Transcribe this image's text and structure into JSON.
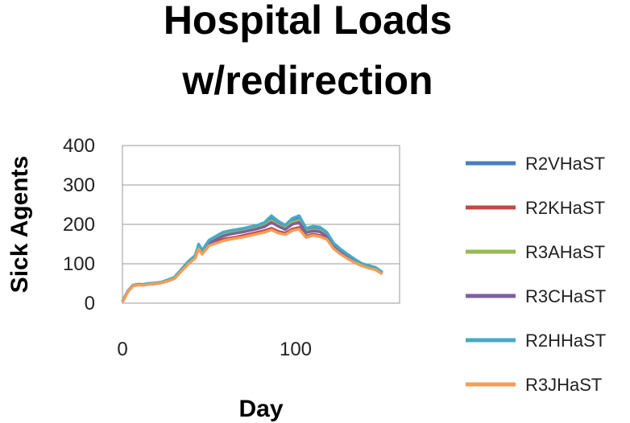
{
  "chart_data": {
    "type": "line",
    "title": [
      "Hospital Loads",
      "w/redirection"
    ],
    "xlabel": "Day",
    "ylabel": "Sick Agents",
    "xlim": [
      0,
      160
    ],
    "ylim": [
      0,
      400
    ],
    "x_ticks": [
      0,
      100
    ],
    "y_ticks": [
      0,
      100,
      200,
      300,
      400
    ],
    "grid": "horizontal",
    "legend_position": "right",
    "series": [
      {
        "name": "R2VHaST",
        "color": "#4a7ebb",
        "x": [
          0,
          3,
          6,
          9,
          12,
          15,
          18,
          22,
          26,
          30,
          34,
          38,
          42,
          44,
          46,
          50,
          54,
          58,
          62,
          66,
          70,
          74,
          78,
          82,
          86,
          90,
          94,
          98,
          102,
          106,
          110,
          114,
          118,
          122,
          126,
          130,
          134,
          138,
          142,
          146,
          150
        ],
        "y": [
          5,
          30,
          45,
          48,
          47,
          49,
          50,
          52,
          58,
          65,
          85,
          105,
          120,
          148,
          132,
          158,
          168,
          178,
          182,
          185,
          188,
          192,
          196,
          202,
          218,
          205,
          195,
          212,
          218,
          188,
          192,
          190,
          178,
          150,
          135,
          122,
          110,
          100,
          95,
          90,
          78
        ]
      },
      {
        "name": "R2KHaST",
        "color": "#be4b48",
        "x": [
          0,
          3,
          6,
          9,
          12,
          15,
          18,
          22,
          26,
          30,
          34,
          38,
          42,
          44,
          46,
          50,
          54,
          58,
          62,
          66,
          70,
          74,
          78,
          82,
          86,
          90,
          94,
          98,
          102,
          106,
          110,
          114,
          118,
          122,
          126,
          130,
          134,
          138,
          142,
          146,
          150
        ],
        "y": [
          3,
          28,
          44,
          47,
          46,
          48,
          49,
          51,
          56,
          63,
          82,
          100,
          115,
          140,
          126,
          148,
          155,
          162,
          165,
          168,
          172,
          176,
          180,
          184,
          190,
          182,
          178,
          188,
          192,
          170,
          175,
          172,
          165,
          140,
          126,
          115,
          105,
          96,
          90,
          86,
          75
        ]
      },
      {
        "name": "R3AHaST",
        "color": "#98b954",
        "x": [
          0,
          3,
          6,
          9,
          12,
          15,
          18,
          22,
          26,
          30,
          34,
          38,
          42,
          44,
          46,
          50,
          54,
          58,
          62,
          66,
          70,
          74,
          78,
          82,
          86,
          90,
          94,
          98,
          102,
          106,
          110,
          114,
          118,
          122,
          126,
          130,
          134,
          138,
          142,
          146,
          150
        ],
        "y": [
          4,
          29,
          45,
          47,
          47,
          48,
          50,
          52,
          57,
          64,
          84,
          103,
          118,
          145,
          130,
          154,
          164,
          174,
          178,
          181,
          184,
          188,
          192,
          197,
          210,
          198,
          190,
          205,
          210,
          182,
          186,
          184,
          172,
          146,
          131,
          119,
          108,
          98,
          93,
          88,
          77
        ]
      },
      {
        "name": "R3CHaST",
        "color": "#7d60a0",
        "x": [
          0,
          3,
          6,
          9,
          12,
          15,
          18,
          22,
          26,
          30,
          34,
          38,
          42,
          44,
          46,
          50,
          54,
          58,
          62,
          66,
          70,
          74,
          78,
          82,
          86,
          90,
          94,
          98,
          102,
          106,
          110,
          114,
          118,
          122,
          126,
          130,
          134,
          138,
          142,
          146,
          150
        ],
        "y": [
          4,
          29,
          44,
          48,
          46,
          49,
          49,
          52,
          57,
          64,
          83,
          102,
          117,
          144,
          129,
          152,
          161,
          170,
          175,
          178,
          181,
          185,
          189,
          194,
          205,
          195,
          187,
          200,
          205,
          179,
          183,
          181,
          170,
          144,
          129,
          118,
          107,
          97,
          92,
          87,
          76
        ]
      },
      {
        "name": "R2HHaST",
        "color": "#46aac5",
        "x": [
          0,
          3,
          6,
          9,
          12,
          15,
          18,
          22,
          26,
          30,
          34,
          38,
          42,
          44,
          46,
          50,
          54,
          58,
          62,
          66,
          70,
          74,
          78,
          82,
          86,
          90,
          94,
          98,
          102,
          106,
          110,
          114,
          118,
          122,
          126,
          130,
          134,
          138,
          142,
          146,
          150
        ],
        "y": [
          5,
          30,
          46,
          48,
          48,
          50,
          51,
          53,
          59,
          66,
          86,
          106,
          121,
          150,
          134,
          160,
          170,
          180,
          184,
          187,
          190,
          194,
          198,
          205,
          222,
          208,
          198,
          215,
          222,
          190,
          195,
          193,
          180,
          152,
          137,
          124,
          112,
          101,
          96,
          91,
          79
        ]
      },
      {
        "name": "R3JHaST",
        "color": "#f59d56",
        "x": [
          0,
          3,
          6,
          9,
          12,
          15,
          18,
          22,
          26,
          30,
          34,
          38,
          42,
          44,
          46,
          50,
          54,
          58,
          62,
          66,
          70,
          74,
          78,
          82,
          86,
          90,
          94,
          98,
          102,
          106,
          110,
          114,
          118,
          122,
          126,
          130,
          134,
          138,
          142,
          146,
          150
        ],
        "y": [
          3,
          28,
          44,
          46,
          46,
          48,
          49,
          51,
          56,
          62,
          81,
          99,
          114,
          138,
          124,
          146,
          152,
          158,
          162,
          165,
          168,
          172,
          176,
          180,
          186,
          178,
          174,
          184,
          188,
          167,
          172,
          169,
          162,
          138,
          124,
          113,
          103,
          95,
          89,
          85,
          74
        ]
      }
    ]
  }
}
